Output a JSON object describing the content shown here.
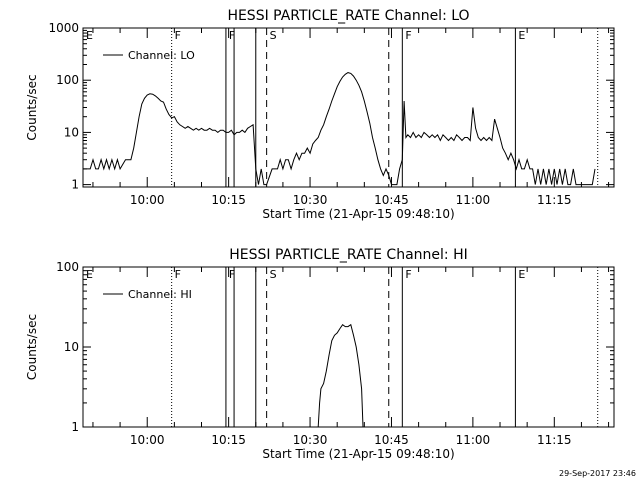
{
  "colors": {
    "background": "#ffffff",
    "ink": "#000000"
  },
  "footer": {
    "timestamp": "29-Sep-2017 23:46"
  },
  "chart_data": [
    {
      "type": "line",
      "title": "HESSI PARTICLE_RATE Channel: LO",
      "xlabel": "Start Time (21-Apr-15 09:48:10)",
      "ylabel": "Counts/sec",
      "y_scale": "log",
      "ylim": [
        0.9,
        1000
      ],
      "xlim": [
        "09:48:10",
        "11:26:00"
      ],
      "x_ticks": [
        "10:00",
        "10:15",
        "10:30",
        "10:45",
        "11:00",
        "11:15"
      ],
      "y_ticks": [
        "1",
        "10",
        "100",
        "1000"
      ],
      "legend": {
        "placement": "top-left",
        "entries": [
          "Channel: LO"
        ]
      },
      "markers": [
        {
          "time": "09:48:10",
          "label": "E",
          "style": "solid"
        },
        {
          "time": "10:04:30",
          "label": "F",
          "style": "dotted"
        },
        {
          "time": "10:14:30",
          "label": "F",
          "style": "solid"
        },
        {
          "time": "10:16:00",
          "label": "",
          "style": "solid"
        },
        {
          "time": "10:20:00",
          "label": "",
          "style": "solid"
        },
        {
          "time": "10:22:00",
          "label": "S",
          "style": "dashed"
        },
        {
          "time": "10:44:30",
          "label": "",
          "style": "dashed"
        },
        {
          "time": "10:47:00",
          "label": "F",
          "style": "solid"
        },
        {
          "time": "11:07:50",
          "label": "E",
          "style": "solid"
        },
        {
          "time": "11:23:00",
          "label": "",
          "style": "dotted"
        }
      ],
      "series": [
        {
          "name": "Channel: LO",
          "points": [
            [
              "09:48:10",
              2
            ],
            [
              "09:49:30",
              2
            ],
            [
              "09:50:00",
              3
            ],
            [
              "09:50:30",
              2
            ],
            [
              "09:51:00",
              2
            ],
            [
              "09:51:30",
              3
            ],
            [
              "09:52:00",
              2
            ],
            [
              "09:52:30",
              3
            ],
            [
              "09:53:00",
              2
            ],
            [
              "09:53:30",
              3
            ],
            [
              "09:54:00",
              2
            ],
            [
              "09:54:30",
              3
            ],
            [
              "09:55:00",
              2
            ],
            [
              "09:56:00",
              3
            ],
            [
              "09:57:00",
              3
            ],
            [
              "09:57:30",
              5
            ],
            [
              "09:58:00",
              10
            ],
            [
              "09:58:30",
              20
            ],
            [
              "09:59:00",
              35
            ],
            [
              "09:59:30",
              45
            ],
            [
              "10:00:00",
              52
            ],
            [
              "10:00:30",
              55
            ],
            [
              "10:01:00",
              54
            ],
            [
              "10:01:30",
              50
            ],
            [
              "10:02:00",
              45
            ],
            [
              "10:02:30",
              40
            ],
            [
              "10:03:00",
              38
            ],
            [
              "10:03:30",
              28
            ],
            [
              "10:04:00",
              22
            ],
            [
              "10:04:30",
              19
            ],
            [
              "10:05:00",
              20
            ],
            [
              "10:05:30",
              16
            ],
            [
              "10:06:00",
              14
            ],
            [
              "10:06:30",
              13
            ],
            [
              "10:07:00",
              12
            ],
            [
              "10:07:30",
              13
            ],
            [
              "10:08:00",
              12
            ],
            [
              "10:08:30",
              11
            ],
            [
              "10:09:00",
              12
            ],
            [
              "10:09:30",
              11
            ],
            [
              "10:10:00",
              12
            ],
            [
              "10:10:30",
              11
            ],
            [
              "10:11:00",
              11
            ],
            [
              "10:11:30",
              12
            ],
            [
              "10:12:00",
              11
            ],
            [
              "10:12:30",
              11
            ],
            [
              "10:13:00",
              10
            ],
            [
              "10:13:30",
              11
            ],
            [
              "10:14:00",
              11
            ],
            [
              "10:14:30",
              10
            ],
            [
              "10:15:00",
              10
            ],
            [
              "10:15:30",
              11
            ],
            [
              "10:16:00",
              9
            ],
            [
              "10:16:30",
              10
            ],
            [
              "10:17:00",
              10
            ],
            [
              "10:17:30",
              11
            ],
            [
              "10:18:00",
              10
            ],
            [
              "10:18:30",
              12
            ],
            [
              "10:19:00",
              13
            ],
            [
              "10:19:30",
              14
            ],
            [
              "10:20:00",
              2
            ],
            [
              "10:20:30",
              1
            ],
            [
              "10:21:00",
              2
            ],
            [
              "10:21:30",
              1
            ],
            [
              "10:22:00",
              1
            ],
            [
              "10:23:00",
              2
            ],
            [
              "10:24:00",
              2
            ],
            [
              "10:24:30",
              3
            ],
            [
              "10:25:00",
              2
            ],
            [
              "10:25:30",
              3
            ],
            [
              "10:26:00",
              3
            ],
            [
              "10:26:30",
              2
            ],
            [
              "10:27:00",
              3
            ],
            [
              "10:27:30",
              4
            ],
            [
              "10:28:00",
              3
            ],
            [
              "10:28:30",
              4
            ],
            [
              "10:29:00",
              4
            ],
            [
              "10:29:30",
              5
            ],
            [
              "10:30:00",
              4
            ],
            [
              "10:30:30",
              6
            ],
            [
              "10:31:00",
              7
            ],
            [
              "10:31:30",
              8
            ],
            [
              "10:32:00",
              11
            ],
            [
              "10:32:30",
              14
            ],
            [
              "10:33:00",
              20
            ],
            [
              "10:33:30",
              28
            ],
            [
              "10:34:00",
              40
            ],
            [
              "10:34:30",
              55
            ],
            [
              "10:35:00",
              75
            ],
            [
              "10:35:30",
              95
            ],
            [
              "10:36:00",
              115
            ],
            [
              "10:36:30",
              130
            ],
            [
              "10:37:00",
              140
            ],
            [
              "10:37:30",
              135
            ],
            [
              "10:38:00",
              120
            ],
            [
              "10:38:30",
              100
            ],
            [
              "10:39:00",
              80
            ],
            [
              "10:39:30",
              60
            ],
            [
              "10:40:00",
              40
            ],
            [
              "10:40:30",
              25
            ],
            [
              "10:41:00",
              15
            ],
            [
              "10:41:30",
              8
            ],
            [
              "10:42:00",
              5
            ],
            [
              "10:42:30",
              3
            ],
            [
              "10:43:00",
              2
            ],
            [
              "10:43:30",
              1.5
            ],
            [
              "10:44:00",
              2
            ],
            [
              "10:44:30",
              1.5
            ],
            [
              "10:45:00",
              1
            ],
            [
              "10:46:00",
              1
            ],
            [
              "10:46:30",
              2
            ],
            [
              "10:47:00",
              3
            ],
            [
              "10:47:20",
              40
            ],
            [
              "10:47:40",
              8
            ],
            [
              "10:48:00",
              9
            ],
            [
              "10:48:30",
              8
            ],
            [
              "10:49:00",
              10
            ],
            [
              "10:49:30",
              8
            ],
            [
              "10:50:00",
              9
            ],
            [
              "10:50:30",
              8
            ],
            [
              "10:51:00",
              10
            ],
            [
              "10:51:30",
              9
            ],
            [
              "10:52:00",
              8
            ],
            [
              "10:52:30",
              9
            ],
            [
              "10:53:00",
              8
            ],
            [
              "10:53:30",
              9
            ],
            [
              "10:54:00",
              7
            ],
            [
              "10:54:30",
              9
            ],
            [
              "10:55:00",
              8
            ],
            [
              "10:55:30",
              7
            ],
            [
              "10:56:00",
              8
            ],
            [
              "10:56:30",
              7
            ],
            [
              "10:57:00",
              9
            ],
            [
              "10:57:30",
              8
            ],
            [
              "10:58:00",
              7
            ],
            [
              "10:58:30",
              8
            ],
            [
              "10:59:00",
              8
            ],
            [
              "10:59:30",
              7
            ],
            [
              "11:00:00",
              30
            ],
            [
              "11:00:30",
              12
            ],
            [
              "11:01:00",
              8
            ],
            [
              "11:01:30",
              7
            ],
            [
              "11:02:00",
              8
            ],
            [
              "11:02:30",
              7
            ],
            [
              "11:03:00",
              8
            ],
            [
              "11:03:30",
              7
            ],
            [
              "11:04:00",
              18
            ],
            [
              "11:04:30",
              12
            ],
            [
              "11:05:00",
              8
            ],
            [
              "11:05:30",
              5
            ],
            [
              "11:06:00",
              4
            ],
            [
              "11:06:30",
              3
            ],
            [
              "11:07:00",
              4
            ],
            [
              "11:07:30",
              3
            ],
            [
              "11:08:00",
              2
            ],
            [
              "11:08:30",
              3
            ],
            [
              "11:09:00",
              2
            ],
            [
              "11:09:30",
              2
            ],
            [
              "11:10:00",
              3
            ],
            [
              "11:10:30",
              2
            ],
            [
              "11:11:00",
              2
            ],
            [
              "11:11:30",
              1
            ],
            [
              "11:12:00",
              2
            ],
            [
              "11:12:30",
              1
            ],
            [
              "11:13:00",
              2
            ],
            [
              "11:13:30",
              1
            ],
            [
              "11:14:00",
              2
            ],
            [
              "11:14:30",
              1
            ],
            [
              "11:15:00",
              2
            ],
            [
              "11:15:30",
              1
            ],
            [
              "11:16:00",
              2
            ],
            [
              "11:16:30",
              1
            ],
            [
              "11:17:00",
              2
            ],
            [
              "11:17:30",
              1
            ],
            [
              "11:18:00",
              1
            ],
            [
              "11:18:30",
              2
            ],
            [
              "11:19:00",
              1
            ],
            [
              "11:19:30",
              1
            ],
            [
              "11:20:00",
              1
            ],
            [
              "11:21:00",
              1
            ],
            [
              "11:22:00",
              1
            ],
            [
              "11:22:30",
              2
            ]
          ]
        }
      ]
    },
    {
      "type": "line",
      "title": "HESSI PARTICLE_RATE Channel: HI",
      "xlabel": "Start Time (21-Apr-15 09:48:10)",
      "ylabel": "Counts/sec",
      "y_scale": "log",
      "ylim": [
        1,
        100
      ],
      "xlim": [
        "09:48:10",
        "11:26:00"
      ],
      "x_ticks": [
        "10:00",
        "10:15",
        "10:30",
        "10:45",
        "11:00",
        "11:15"
      ],
      "y_ticks": [
        "1",
        "10",
        "100"
      ],
      "legend": {
        "placement": "top-left",
        "entries": [
          "Channel: HI"
        ]
      },
      "markers": [
        {
          "time": "09:48:10",
          "label": "E",
          "style": "solid"
        },
        {
          "time": "10:04:30",
          "label": "F",
          "style": "dotted"
        },
        {
          "time": "10:14:30",
          "label": "F",
          "style": "solid"
        },
        {
          "time": "10:16:00",
          "label": "",
          "style": "solid"
        },
        {
          "time": "10:20:00",
          "label": "",
          "style": "solid"
        },
        {
          "time": "10:22:00",
          "label": "S",
          "style": "dashed"
        },
        {
          "time": "10:44:30",
          "label": "",
          "style": "dashed"
        },
        {
          "time": "10:47:00",
          "label": "F",
          "style": "solid"
        },
        {
          "time": "11:07:50",
          "label": "E",
          "style": "solid"
        },
        {
          "time": "11:23:00",
          "label": "",
          "style": "dotted"
        }
      ],
      "series": [
        {
          "name": "Channel: HI",
          "points": [
            [
              "10:31:30",
              1
            ],
            [
              "10:31:45",
              2
            ],
            [
              "10:32:00",
              3
            ],
            [
              "10:32:30",
              3.5
            ],
            [
              "10:33:00",
              5
            ],
            [
              "10:33:30",
              8
            ],
            [
              "10:34:00",
              12
            ],
            [
              "10:34:30",
              14
            ],
            [
              "10:35:00",
              15
            ],
            [
              "10:35:30",
              17
            ],
            [
              "10:36:00",
              19
            ],
            [
              "10:36:30",
              18
            ],
            [
              "10:37:00",
              18
            ],
            [
              "10:37:30",
              19
            ],
            [
              "10:38:00",
              14
            ],
            [
              "10:38:30",
              10
            ],
            [
              "10:39:00",
              6
            ],
            [
              "10:39:30",
              3
            ],
            [
              "10:39:45",
              1
            ]
          ]
        }
      ]
    }
  ]
}
